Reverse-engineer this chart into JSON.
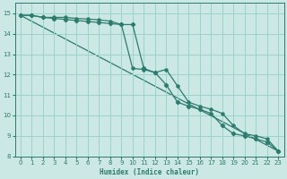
{
  "xlabel": "Humidex (Indice chaleur)",
  "bg_color": "#cce8e4",
  "grid_color": "#99d4cc",
  "line_color": "#2d7a6e",
  "xlim": [
    -0.5,
    23.5
  ],
  "ylim": [
    8,
    15.5
  ],
  "yticks": [
    8,
    9,
    10,
    11,
    12,
    13,
    14,
    15
  ],
  "xticks": [
    0,
    1,
    2,
    3,
    4,
    5,
    6,
    7,
    8,
    9,
    10,
    11,
    12,
    13,
    14,
    15,
    16,
    17,
    18,
    19,
    20,
    21,
    22,
    23
  ],
  "series1_x": [
    0,
    1,
    2,
    3,
    4,
    5,
    6,
    7,
    8,
    9,
    10,
    11,
    12,
    13,
    14,
    15,
    16,
    17,
    18,
    19,
    20,
    21,
    22,
    23
  ],
  "series1_y": [
    14.9,
    14.9,
    14.8,
    14.8,
    14.8,
    14.75,
    14.72,
    14.68,
    14.62,
    14.45,
    12.3,
    12.25,
    12.1,
    12.25,
    11.45,
    10.65,
    10.45,
    10.3,
    10.1,
    9.5,
    9.1,
    9.0,
    8.85,
    8.25
  ],
  "series2_x": [
    0,
    1,
    2,
    3,
    4,
    5,
    6,
    7,
    8,
    9,
    10,
    11,
    12,
    13,
    14,
    15,
    16,
    17,
    18,
    19,
    20,
    21,
    22,
    23
  ],
  "series2_y": [
    14.9,
    14.9,
    14.8,
    14.75,
    14.7,
    14.65,
    14.6,
    14.55,
    14.5,
    14.45,
    14.45,
    12.3,
    12.1,
    11.5,
    10.65,
    10.45,
    10.3,
    10.1,
    9.5,
    9.1,
    9.0,
    8.85,
    8.7,
    8.25
  ],
  "series3_x": [
    0,
    23
  ],
  "series3_y": [
    14.9,
    8.25
  ]
}
